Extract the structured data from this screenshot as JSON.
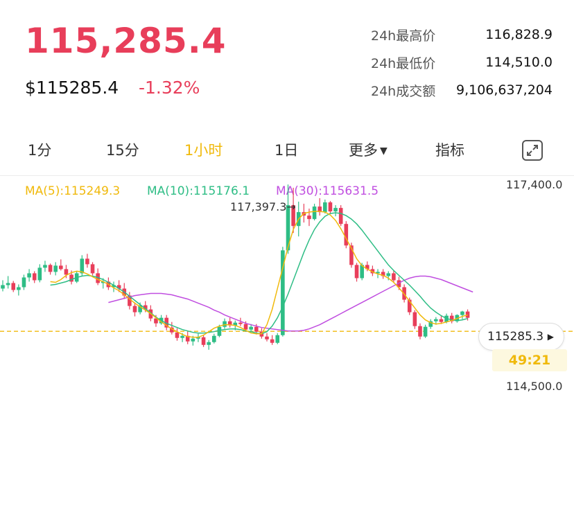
{
  "header": {
    "last_price": "115,285.4",
    "usd_price": "$115285.4",
    "change_pct": "-1.32%"
  },
  "stats": [
    {
      "label": "24h最高价",
      "value": "116,828.9"
    },
    {
      "label": "24h最低价",
      "value": "114,510.0"
    },
    {
      "label": "24h成交额",
      "value": "9,106,637,204"
    }
  ],
  "tabs": [
    {
      "label": "1分"
    },
    {
      "label": "15分"
    },
    {
      "label": "1小时",
      "active": true
    },
    {
      "label": "1日"
    },
    {
      "label": "更多"
    },
    {
      "label": "指标"
    }
  ],
  "indicators": {
    "ma5": "MA(5):115249.3",
    "ma10": "MA(10):115176.1",
    "ma30": "MA(30):115631.5"
  },
  "axis": {
    "top_price": "117,400.0",
    "bottom_price": "114,500.0"
  },
  "chart_data": {
    "type": "candlestick",
    "high_marker": "117,397.3→",
    "current_price_tag": "115285.3",
    "countdown": "49:21",
    "colors": {
      "up": "#2ebd85",
      "down": "#e83e5a",
      "ma5": "#f0b90b",
      "ma10": "#2ebd85",
      "ma30": "#c04ee0",
      "current_line": "#f0b90b"
    },
    "candles": [
      [
        115900,
        116020,
        115860,
        115950
      ],
      [
        115950,
        116080,
        115900,
        115980
      ],
      [
        115980,
        116010,
        115850,
        115880
      ],
      [
        115880,
        115960,
        115800,
        115920
      ],
      [
        115920,
        116100,
        115880,
        116060
      ],
      [
        116060,
        116180,
        116000,
        116120
      ],
      [
        116120,
        116150,
        115980,
        116020
      ],
      [
        116020,
        116250,
        115990,
        116200
      ],
      [
        116200,
        116300,
        116140,
        116240
      ],
      [
        116240,
        116260,
        116100,
        116140
      ],
      [
        116140,
        116280,
        116090,
        116230
      ],
      [
        116230,
        116320,
        116160,
        116180
      ],
      [
        116180,
        116240,
        116050,
        116100
      ],
      [
        116100,
        116160,
        115960,
        116000
      ],
      [
        116000,
        116150,
        115980,
        116120
      ],
      [
        116120,
        116380,
        116080,
        116330
      ],
      [
        116330,
        116400,
        116200,
        116250
      ],
      [
        116250,
        116280,
        116090,
        116120
      ],
      [
        116120,
        116190,
        115950,
        115980
      ],
      [
        115980,
        116050,
        115900,
        116000
      ],
      [
        116000,
        116060,
        115880,
        115920
      ],
      [
        115920,
        116000,
        115850,
        115950
      ],
      [
        115950,
        116020,
        115850,
        115900
      ],
      [
        115900,
        115980,
        115750,
        115800
      ],
      [
        115800,
        115850,
        115600,
        115650
      ],
      [
        115650,
        115700,
        115500,
        115560
      ],
      [
        115560,
        115700,
        115530,
        115660
      ],
      [
        115660,
        115720,
        115560,
        115600
      ],
      [
        115600,
        115660,
        115430,
        115470
      ],
      [
        115470,
        115520,
        115350,
        115400
      ],
      [
        115400,
        115520,
        115380,
        115480
      ],
      [
        115480,
        115520,
        115300,
        115340
      ],
      [
        115340,
        115420,
        115240,
        115270
      ],
      [
        115270,
        115330,
        115150,
        115190
      ],
      [
        115190,
        115260,
        115130,
        115220
      ],
      [
        115220,
        115280,
        115100,
        115140
      ],
      [
        115140,
        115220,
        115080,
        115180
      ],
      [
        115180,
        115250,
        115130,
        115200
      ],
      [
        115200,
        115230,
        115060,
        115090
      ],
      [
        115090,
        115160,
        115020,
        115130
      ],
      [
        115130,
        115250,
        115110,
        115220
      ],
      [
        115220,
        115380,
        115200,
        115350
      ],
      [
        115350,
        115470,
        115320,
        115430
      ],
      [
        115430,
        115480,
        115340,
        115370
      ],
      [
        115370,
        115440,
        115300,
        115410
      ],
      [
        115410,
        115480,
        115360,
        115390
      ],
      [
        115390,
        115430,
        115280,
        115310
      ],
      [
        115310,
        115390,
        115270,
        115350
      ],
      [
        115350,
        115390,
        115240,
        115280
      ],
      [
        115280,
        115330,
        115180,
        115210
      ],
      [
        115210,
        115260,
        115140,
        115170
      ],
      [
        115170,
        115230,
        115090,
        115120
      ],
      [
        115120,
        115260,
        115100,
        115230
      ],
      [
        115230,
        116500,
        115210,
        116450
      ],
      [
        116450,
        117397,
        116400,
        117100
      ],
      [
        117100,
        117350,
        116700,
        116800
      ],
      [
        116800,
        117150,
        116650,
        117000
      ],
      [
        117000,
        117120,
        116850,
        116950
      ],
      [
        116950,
        117050,
        116800,
        116900
      ],
      [
        116900,
        117120,
        116880,
        117080
      ],
      [
        117080,
        117200,
        116950,
        117000
      ],
      [
        117000,
        117180,
        116980,
        117140
      ],
      [
        117140,
        117160,
        116970,
        117010
      ],
      [
        117010,
        117100,
        116940,
        117060
      ],
      [
        117060,
        117100,
        116800,
        116830
      ],
      [
        116830,
        116870,
        116480,
        116520
      ],
      [
        116520,
        116560,
        116200,
        116240
      ],
      [
        116240,
        116270,
        116000,
        116050
      ],
      [
        116050,
        116270,
        116020,
        116240
      ],
      [
        116240,
        116290,
        116150,
        116180
      ],
      [
        116180,
        116230,
        116080,
        116120
      ],
      [
        116120,
        116180,
        116050,
        116140
      ],
      [
        116140,
        116180,
        116040,
        116080
      ],
      [
        116080,
        116150,
        116020,
        116120
      ],
      [
        116120,
        116160,
        115980,
        116020
      ],
      [
        116020,
        116070,
        115880,
        115920
      ],
      [
        115920,
        115960,
        115700,
        115740
      ],
      [
        115740,
        115770,
        115520,
        115560
      ],
      [
        115560,
        115590,
        115320,
        115360
      ],
      [
        115360,
        115400,
        115170,
        115210
      ],
      [
        115210,
        115380,
        115190,
        115350
      ],
      [
        115350,
        115460,
        115320,
        115430
      ],
      [
        115430,
        115490,
        115380,
        115460
      ],
      [
        115460,
        115510,
        115390,
        115420
      ],
      [
        115420,
        115540,
        115400,
        115510
      ],
      [
        115510,
        115550,
        115400,
        115430
      ],
      [
        115430,
        115530,
        115410,
        115520
      ],
      [
        115520,
        115580,
        115460,
        115570
      ],
      [
        115570,
        115600,
        115440,
        115480
      ]
    ],
    "ma5": [
      116000,
      115990,
      116030,
      116090,
      116130,
      116150,
      116140,
      116110,
      116070,
      116030,
      116000,
      115960,
      115910,
      115870,
      115810,
      115750,
      115690,
      115640,
      115590,
      115540,
      115480,
      115420,
      115370,
      115320,
      115280,
      115240,
      115210,
      115200,
      115200,
      115230,
      115280,
      115330,
      115360,
      115380,
      115380,
      115370,
      115340,
      115300,
      115260,
      115250,
      115250,
      115380,
      115600,
      115900,
      116200,
      116500,
      116750,
      116900,
      116980,
      117000,
      117010,
      117010,
      117000,
      116960,
      116880,
      116760,
      116620,
      116480,
      116330,
      116230,
      116180,
      116140,
      116110,
      116090,
      116050,
      115990,
      115910,
      115820,
      115720,
      115620,
      115520,
      115450,
      115410,
      115390,
      115400,
      115420,
      115440,
      115470,
      115500,
      115520
    ],
    "ma10": [
      115950,
      115960,
      115980,
      116000,
      116030,
      116060,
      116080,
      116090,
      116080,
      116060,
      116030,
      115990,
      115950,
      115900,
      115850,
      115790,
      115730,
      115670,
      115610,
      115550,
      115490,
      115440,
      115400,
      115370,
      115340,
      115310,
      115290,
      115270,
      115260,
      115260,
      115270,
      115280,
      115300,
      115310,
      115320,
      115320,
      115310,
      115290,
      115280,
      115260,
      115250,
      115280,
      115360,
      115480,
      115640,
      115820,
      116020,
      116220,
      116420,
      116600,
      116750,
      116860,
      116940,
      116980,
      116990,
      116980,
      116950,
      116900,
      116830,
      116740,
      116640,
      116540,
      116440,
      116340,
      116240,
      116160,
      116090,
      116020,
      115950,
      115870,
      115790,
      115700,
      115620,
      115560,
      115510,
      115470,
      115450,
      115440,
      115450,
      115470
    ],
    "ma30": [
      115700,
      115720,
      115740,
      115760,
      115780,
      115800,
      115810,
      115820,
      115830,
      115830,
      115830,
      115820,
      115810,
      115790,
      115770,
      115750,
      115720,
      115690,
      115660,
      115630,
      115590,
      115560,
      115520,
      115490,
      115460,
      115430,
      115400,
      115380,
      115360,
      115340,
      115330,
      115320,
      115310,
      115300,
      115290,
      115290,
      115290,
      115300,
      115320,
      115350,
      115380,
      115420,
      115460,
      115500,
      115540,
      115580,
      115620,
      115660,
      115700,
      115740,
      115780,
      115820,
      115860,
      115900,
      115940,
      115980,
      116020,
      116050,
      116070,
      116080,
      116080,
      116070,
      116050,
      116030,
      116000,
      115970,
      115940,
      115910,
      115880,
      115850
    ]
  }
}
